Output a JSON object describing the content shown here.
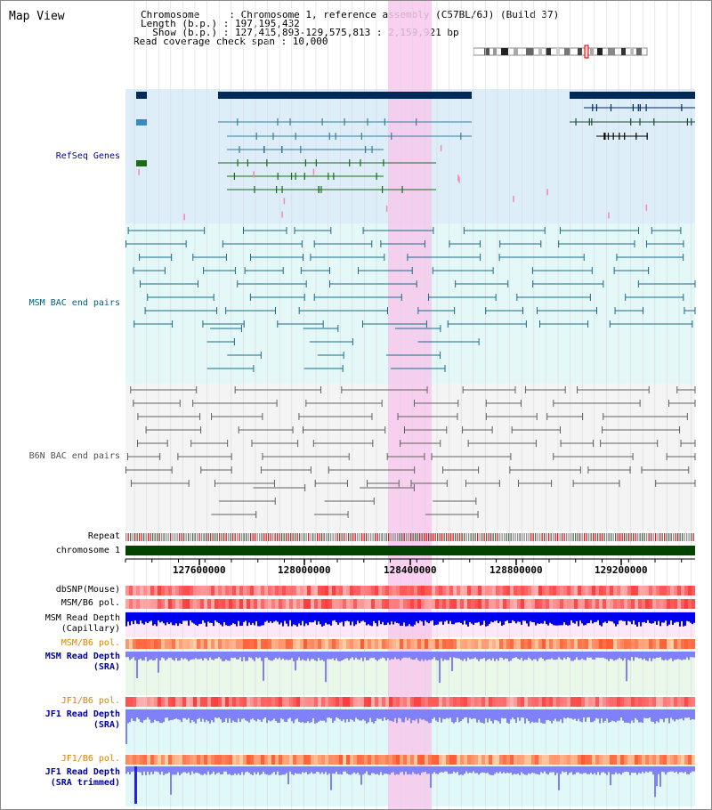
{
  "view": {
    "title": "Map View"
  },
  "info": {
    "chromosome_line": "Chromosome     : Chromosome 1, reference assembly (C57BL/6J) (Build 37)",
    "length_line": "Length (b.p.) : 197,195,432",
    "show_line": "  Show (b.p.) : 127,415,893-129,575,813 : 2,159,921 bp",
    "coverage_line": "Read coverage check span : 10,000"
  },
  "tracks": {
    "refseq": "RefSeq Genes",
    "msm_bac": "MSM BAC end pairs",
    "b6n_bac": "B6N BAC end pairs",
    "repeat": "Repeat",
    "chromosome": "chromosome 1",
    "dbsnp": "dbSNP(Mouse)",
    "msm_b6_pol": "MSM/B6 pol.",
    "msm_read_depth_cap": "MSM Read Depth\n(Capillary)",
    "msm_b6_pol2": "MSM/B6 pol.",
    "msm_read_depth_sra": "MSM Read Depth\n(SRA)",
    "jf1_b6_pol": "JF1/B6 pol.",
    "jf1_read_depth_sra": "JF1 Read Depth\n(SRA)",
    "jf1_b6_pol2": "JF1/B6 pol.",
    "jf1_read_depth_trim": "JF1 Read Depth\n(SRA trimmed)"
  },
  "ruler": {
    "ticks": [
      "127600000",
      "128000000",
      "128400000",
      "128800000",
      "129200000"
    ]
  },
  "colors": {
    "refseq_bg": "#ddeef8",
    "msm_bg": "#e4f8f8",
    "b6n_bg": "#f4f4f4",
    "highlight": "#f8c8ec",
    "gene_navy": "#002a5a",
    "gene_teal": "#3a7a9a",
    "gene_green": "#1a6a1a",
    "chromosome_bar": "#004400",
    "depth_blue": "#0000f0",
    "depth_sra": "#8080f8"
  }
}
